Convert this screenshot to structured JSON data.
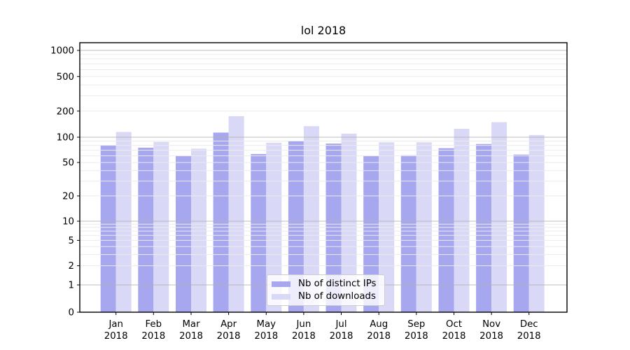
{
  "chart_data": {
    "type": "bar",
    "title": "lol 2018",
    "categories": [
      "Jan 2018",
      "Feb 2018",
      "Mar 2018",
      "Apr 2018",
      "May 2018",
      "Jun 2018",
      "Jul 2018",
      "Aug 2018",
      "Sep 2018",
      "Oct 2018",
      "Nov 2018",
      "Dec 2018"
    ],
    "series": [
      {
        "name": "Nb of distinct IPs",
        "color": "#a7a7ef",
        "values": [
          80,
          75,
          60,
          113,
          63,
          90,
          84,
          60,
          61,
          74,
          83,
          62
        ]
      },
      {
        "name": "Nb of downloads",
        "color": "#d9d9f7",
        "values": [
          115,
          88,
          73,
          175,
          86,
          134,
          110,
          87,
          87,
          125,
          149,
          106
        ]
      }
    ],
    "xlabel": "",
    "ylabel": "",
    "y_ticks": [
      0,
      1,
      2,
      5,
      10,
      20,
      50,
      100,
      200,
      500,
      1000
    ],
    "y_scale": "symlog",
    "ylim": [
      0,
      1200
    ],
    "grid": "horizontal major and minor, drawn over bars",
    "legend_position": "lower center inside plot",
    "colors": {
      "background": "#ffffff",
      "spine": "#000000",
      "major_grid": "#b0b0b0",
      "minor_grid": "#ebebeb",
      "text": "#000000"
    }
  }
}
